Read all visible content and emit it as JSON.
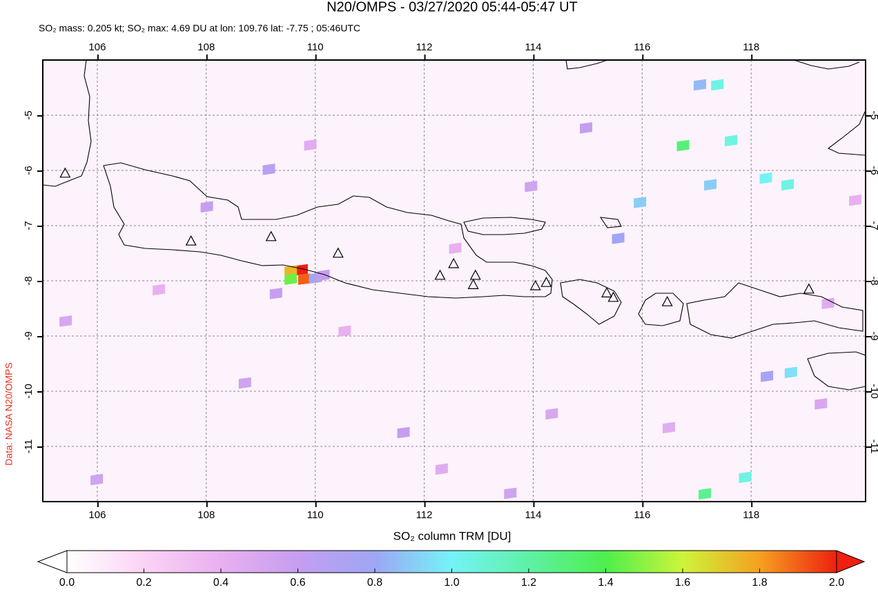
{
  "chart_data": {
    "type": "map",
    "title": "N20/OMPS - 03/27/2020 05:44-05:47 UT",
    "subtitle": "SO₂ mass: 0.205 kt; SO₂ max: 4.69 DU at lon: 109.76 lat: -7.75 ; 05:46UTC",
    "xlabel": "SO₂ column TRM [DU]",
    "source": "Data: NASA N20/OMPS",
    "xlim": [
      105,
      120.1
    ],
    "ylim": [
      -12,
      -4
    ],
    "xticks": [
      106,
      108,
      110,
      112,
      114,
      116,
      118
    ],
    "yticks": [
      -5,
      -6,
      -7,
      -8,
      -9,
      -10,
      -11
    ],
    "grid": true,
    "colorbar": {
      "range": [
        0,
        2
      ],
      "ticks": [
        {
          "value": 0,
          "label": "0.0"
        },
        0.2,
        0.4,
        0.6,
        0.8,
        {
          "value": 1,
          "label": "1.0"
        },
        1.2,
        1.4,
        1.6,
        1.8,
        {
          "value": 2,
          "label": "2.0"
        }
      ],
      "colors": [
        "#ffffff",
        "#fbd3f4",
        "#e9b0f0",
        "#c59ef0",
        "#9ea6f5",
        "#74f3f7",
        "#5ef1a6",
        "#4def4c",
        "#cdf53a",
        "#f5a020",
        "#ee2010"
      ]
    },
    "pixels": {
      "lon": [
        109.75,
        109.55,
        109.55,
        109.8,
        110.0,
        110.15,
        115.96,
        117.06,
        117.38,
        116.75,
        117.63,
        118.27,
        118.67,
        117.25,
        115.56,
        118.73,
        117.89,
        117.15,
        118.29,
        108.01,
        109.15,
        109.28,
        108.71,
        105.99,
        111.62,
        109.91,
        112.57,
        114.97,
        113.96,
        119.28,
        119.41,
        107.13,
        114.34,
        110.54,
        112.32,
        116.49,
        119.91,
        105.42,
        113.58
      ],
      "lat": [
        -7.8,
        -7.82,
        -7.97,
        -7.97,
        -7.95,
        -7.9,
        -6.58,
        -4.45,
        -4.45,
        -5.55,
        -5.46,
        -6.14,
        -6.26,
        -6.26,
        -7.23,
        -9.66,
        -11.56,
        -11.86,
        -9.73,
        -6.66,
        -5.98,
        -8.23,
        -9.85,
        -11.6,
        -10.75,
        -5.54,
        -7.41,
        -5.23,
        -6.29,
        -10.23,
        -8.41,
        -8.16,
        -10.41,
        -8.91,
        -11.41,
        -10.66,
        -6.54,
        -8.73,
        -11.85
      ],
      "values": [
        2.0,
        1.75,
        1.45,
        1.9,
        0.75,
        0.6,
        0.9,
        0.85,
        1.05,
        1.3,
        1.05,
        1.0,
        1.05,
        0.9,
        0.8,
        0.95,
        1.05,
        1.25,
        0.75,
        0.6,
        0.65,
        0.6,
        0.55,
        0.55,
        0.6,
        0.45,
        0.4,
        0.6,
        0.55,
        0.5,
        0.45,
        0.4,
        0.5,
        0.4,
        0.45,
        0.45,
        0.4,
        0.5,
        0.55
      ]
    },
    "volcanoes": {
      "lon": [
        105.41,
        107.72,
        109.19,
        110.42,
        112.29,
        112.54,
        112.94,
        112.9,
        114.04,
        114.24,
        115.35,
        115.47,
        116.46,
        119.06
      ],
      "lat": [
        -6.06,
        -7.29,
        -7.21,
        -7.51,
        -7.91,
        -7.7,
        -7.91,
        -8.08,
        -8.1,
        -8.04,
        -8.23,
        -8.31,
        -8.39,
        -8.16
      ]
    }
  }
}
